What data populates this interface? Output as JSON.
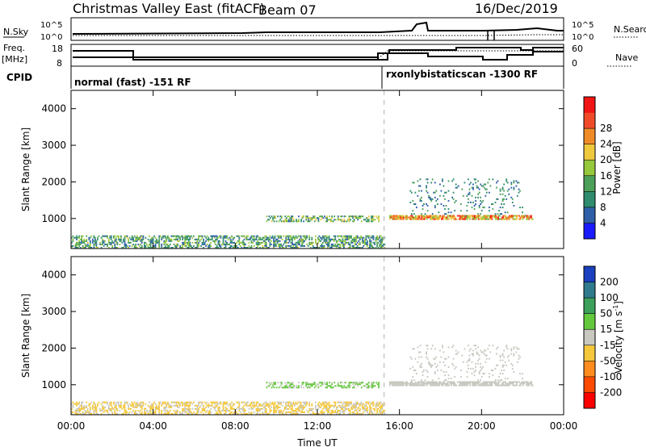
{
  "header": {
    "title": "Christmas Valley East (fitACF)",
    "beam": "Beam 07",
    "date": "16/Dec/2019"
  },
  "strip_labels": {
    "nsky": "N.Sky",
    "nsearch": "N.Search",
    "freq": "Freq.",
    "freq_unit": "[MHz]",
    "nave": "Nave",
    "cpid": "CPID",
    "noise_ticks_left": [
      "10^5",
      "10^0"
    ],
    "noise_ticks_right": [
      "10^5",
      "10^0"
    ],
    "freq_ticks": [
      "18",
      "8"
    ],
    "nave_ticks": [
      "60",
      "0"
    ]
  },
  "modes": [
    {
      "label": "normal (fast) -151 RF",
      "start_h": 0
    },
    {
      "label": "rxonlybistaticscan -1300 RF",
      "start_h": 15.25
    }
  ],
  "colors": {
    "power": [
      "#1a1aff",
      "#2f5fa8",
      "#2f8c6e",
      "#4ca05a",
      "#96c83c",
      "#f0c83c",
      "#f08c28",
      "#f04b28",
      "#f01414"
    ],
    "velocity": [
      "#ff0000",
      "#ff4b00",
      "#ff8c1e",
      "#f5c83c",
      "#c8c8c0",
      "#64c83c",
      "#3ca05a",
      "#2f7a8c",
      "#1a3fbf"
    ],
    "ground_scatter": "#c8c8c0",
    "dashed_line": "#c8c8c8"
  },
  "chart_data": [
    {
      "type": "heatmap",
      "name": "power",
      "xlabel": "",
      "ylabel": "Slant Range [km]",
      "xlim": [
        0,
        24
      ],
      "ylim": [
        180,
        4500
      ],
      "yticks": [
        "1000",
        "2000",
        "3000",
        "4000"
      ],
      "colorbar": {
        "label": "Power [dB]",
        "ticks": [
          "4",
          "8",
          "12",
          "16",
          "20",
          "24",
          "28"
        ],
        "range": [
          0,
          32
        ]
      },
      "regions": [
        {
          "t0": 0.0,
          "t1": 15.25,
          "r0": 180,
          "r1": 500,
          "density": 0.55,
          "value_range": [
            4,
            18
          ]
        },
        {
          "t0": 9.5,
          "t1": 15.0,
          "r0": 900,
          "r1": 1050,
          "density": 0.5,
          "value_range": [
            6,
            20
          ]
        },
        {
          "t0": 15.5,
          "t1": 22.5,
          "r0": 960,
          "r1": 1060,
          "density": 0.8,
          "value_range": [
            14,
            30
          ]
        },
        {
          "t0": 16.5,
          "t1": 22.0,
          "r0": 1100,
          "r1": 2050,
          "density": 0.12,
          "value_range": [
            4,
            14
          ]
        }
      ]
    },
    {
      "type": "heatmap",
      "name": "velocity",
      "xlabel": "Time UT",
      "ylabel": "Slant Range [km]",
      "xlim": [
        0,
        24
      ],
      "ylim": [
        180,
        4500
      ],
      "xticks": [
        "00:00",
        "04:00",
        "08:00",
        "12:00",
        "16:00",
        "20:00",
        "00:00"
      ],
      "yticks": [
        "1000",
        "2000",
        "3000",
        "4000"
      ],
      "colorbar": {
        "label": "Velocity [m s^-1]",
        "ticks": [
          "-200",
          "-100",
          "-50",
          "-15",
          "15",
          "50",
          "100",
          "200"
        ],
        "range": [
          -250,
          250
        ]
      },
      "regions": [
        {
          "t0": 0.0,
          "t1": 15.25,
          "r0": 180,
          "r1": 500,
          "density": 0.55,
          "value_range": [
            -60,
            -10
          ]
        },
        {
          "t0": 9.5,
          "t1": 15.0,
          "r0": 900,
          "r1": 1050,
          "density": 0.5,
          "value_range": [
            10,
            70
          ]
        },
        {
          "t0": 15.5,
          "t1": 22.5,
          "r0": 960,
          "r1": 1060,
          "density": 0.8,
          "value_range": [
            -5,
            5
          ]
        },
        {
          "t0": 16.5,
          "t1": 22.0,
          "r0": 1100,
          "r1": 2050,
          "density": 0.12,
          "value_range": [
            -5,
            5
          ]
        }
      ]
    }
  ]
}
